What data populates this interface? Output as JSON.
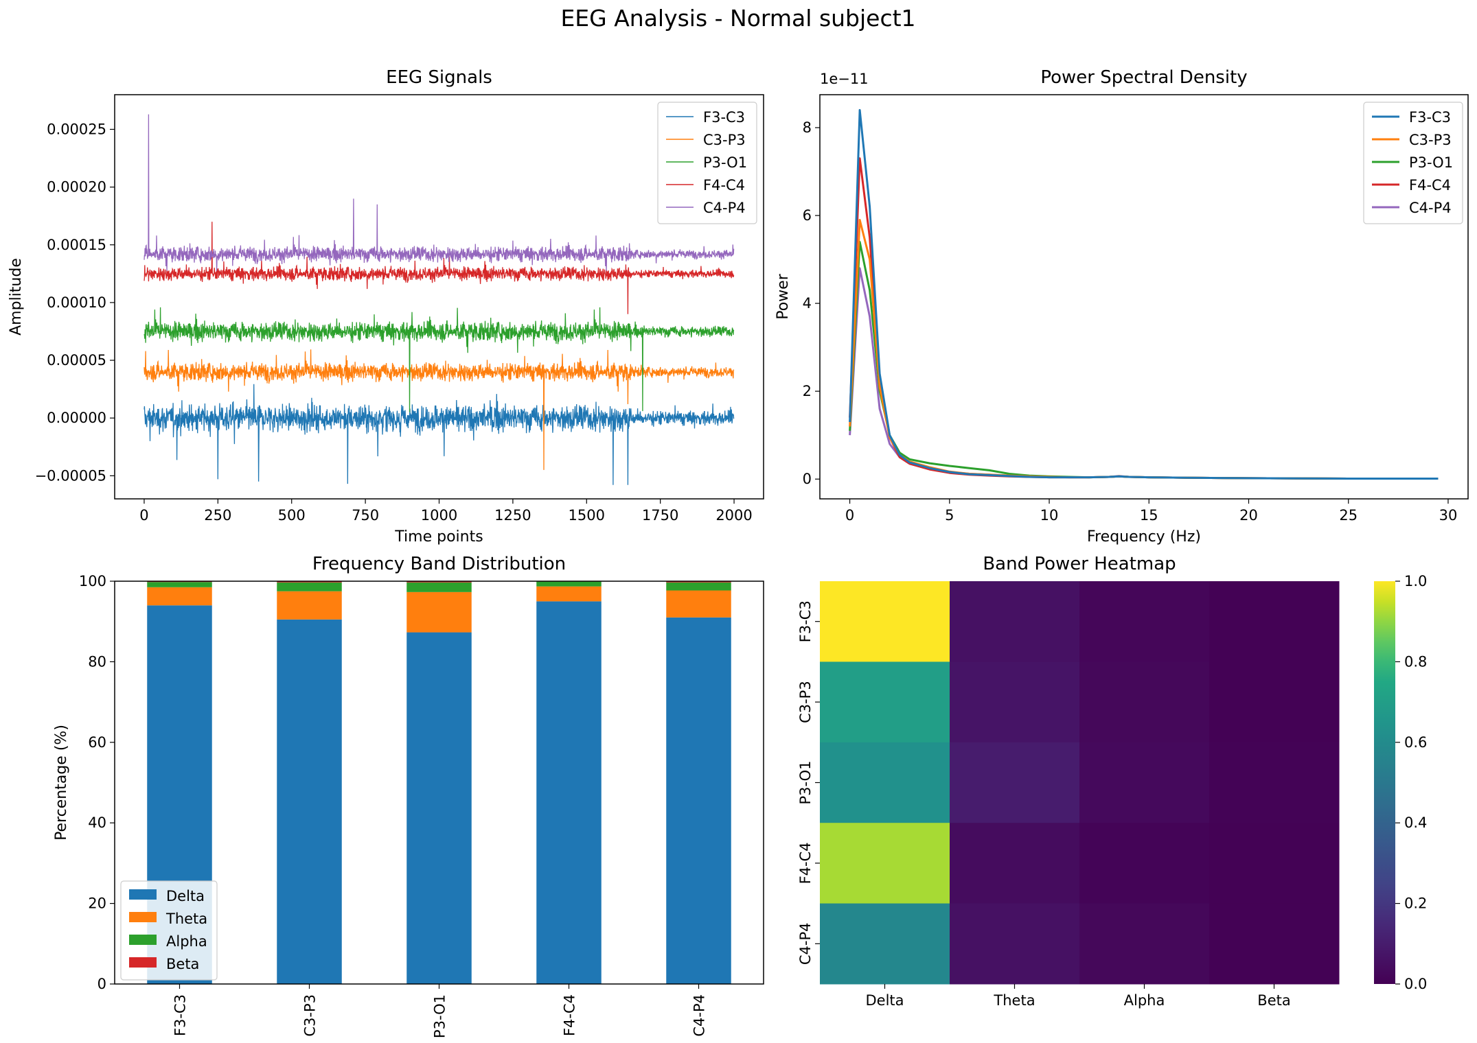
{
  "figure": {
    "title": "EEG Analysis - Normal subject1"
  },
  "chart_data": [
    {
      "type": "line",
      "title": "EEG Signals",
      "xlabel": "Time points",
      "ylabel": "Amplitude",
      "xlim": [
        -100,
        2100
      ],
      "ylim": [
        -7e-05,
        0.00028
      ],
      "xticks": [
        0,
        250,
        500,
        750,
        1000,
        1250,
        1500,
        1750,
        2000
      ],
      "xtick_labels": [
        "0",
        "250",
        "500",
        "750",
        "1000",
        "1250",
        "1500",
        "1750",
        "2000"
      ],
      "yticks": [
        -5e-05,
        0,
        5e-05,
        0.0001,
        0.00015,
        0.0002,
        0.00025
      ],
      "ytick_labels": [
        "−0.00005",
        "0.00000",
        "0.00005",
        "0.00010",
        "0.00015",
        "0.00020",
        "0.00025"
      ],
      "legend_position": "top-right",
      "series": [
        {
          "name": "F3-C3",
          "color": "#1f77b4",
          "baseline": 0.0,
          "noise": 9.5e-06,
          "spikes": [
            [
              20,
              -2e-05
            ],
            [
              250,
              -5.3e-05
            ],
            [
              388,
              -5.5e-05
            ],
            [
              690,
              -5.7e-05
            ],
            [
              1590,
              -5.8e-05
            ],
            [
              1640,
              -5.8e-05
            ]
          ]
        },
        {
          "name": "C3-P3",
          "color": "#ff7f0e",
          "baseline": 4e-05,
          "noise": 6.5e-06,
          "spikes": [
            [
              5,
              5.8e-05
            ],
            [
              1355,
              -4.5e-05
            ],
            [
              1640,
              1.2e-05
            ]
          ]
        },
        {
          "name": "P3-O1",
          "color": "#2ca02c",
          "baseline": 7.5e-05,
          "noise": 7e-06,
          "spikes": [
            [
              900,
              5e-06
            ],
            [
              1650,
              5.8e-05
            ],
            [
              1690,
              6e-06
            ]
          ]
        },
        {
          "name": "F4-C4",
          "color": "#d62728",
          "baseline": 0.000125,
          "noise": 5e-06,
          "spikes": [
            [
              230,
              0.00017
            ],
            [
              1640,
              9e-05
            ]
          ]
        },
        {
          "name": "C4-P4",
          "color": "#9467bd",
          "baseline": 0.000142,
          "noise": 5.5e-06,
          "spikes": [
            [
              15,
              0.000263
            ],
            [
              710,
              0.00019
            ],
            [
              790,
              0.000185
            ]
          ]
        }
      ],
      "n_points": 2000
    },
    {
      "type": "line",
      "title": "Power Spectral Density",
      "xlabel": "Frequency (Hz)",
      "ylabel": "Power",
      "offset_text": "1e−11",
      "xlim": [
        -1.5,
        31
      ],
      "ylim": [
        -0.45,
        8.75
      ],
      "xticks": [
        0,
        5,
        10,
        15,
        20,
        25,
        30
      ],
      "xtick_labels": [
        "0",
        "5",
        "10",
        "15",
        "20",
        "25",
        "30"
      ],
      "yticks": [
        0,
        2,
        4,
        6,
        8
      ],
      "ytick_labels": [
        "0",
        "2",
        "4",
        "6",
        "8"
      ],
      "legend_position": "top-right",
      "x": [
        0,
        0.5,
        1,
        1.5,
        2,
        2.5,
        3,
        4,
        5,
        6,
        7,
        8,
        9,
        10,
        11,
        12,
        13,
        13.5,
        14,
        15,
        17,
        20,
        25,
        29.5
      ],
      "series": [
        {
          "name": "F3-C3",
          "color": "#1f77b4",
          "values": [
            1.3,
            8.4,
            6.2,
            2.4,
            1.0,
            0.55,
            0.38,
            0.25,
            0.16,
            0.11,
            0.09,
            0.07,
            0.05,
            0.04,
            0.04,
            0.04,
            0.05,
            0.06,
            0.05,
            0.04,
            0.03,
            0.02,
            0.01,
            0.01
          ]
        },
        {
          "name": "C3-P3",
          "color": "#ff7f0e",
          "values": [
            1.2,
            5.9,
            5.0,
            2.1,
            0.95,
            0.55,
            0.4,
            0.27,
            0.17,
            0.12,
            0.1,
            0.08,
            0.06,
            0.05,
            0.04,
            0.04,
            0.05,
            0.06,
            0.05,
            0.04,
            0.03,
            0.02,
            0.01,
            0.01
          ]
        },
        {
          "name": "P3-O1",
          "color": "#2ca02c",
          "values": [
            1.1,
            5.4,
            4.3,
            2.0,
            1.0,
            0.6,
            0.45,
            0.36,
            0.3,
            0.25,
            0.2,
            0.12,
            0.08,
            0.06,
            0.05,
            0.04,
            0.05,
            0.06,
            0.05,
            0.04,
            0.03,
            0.02,
            0.01,
            0.01
          ]
        },
        {
          "name": "F4-C4",
          "color": "#d62728",
          "values": [
            1.4,
            7.3,
            5.5,
            2.2,
            0.95,
            0.5,
            0.35,
            0.22,
            0.14,
            0.1,
            0.08,
            0.06,
            0.05,
            0.04,
            0.04,
            0.04,
            0.05,
            0.06,
            0.05,
            0.04,
            0.03,
            0.02,
            0.01,
            0.01
          ]
        },
        {
          "name": "C4-P4",
          "color": "#9467bd",
          "values": [
            1.0,
            4.8,
            3.7,
            1.6,
            0.8,
            0.5,
            0.35,
            0.24,
            0.16,
            0.12,
            0.1,
            0.08,
            0.06,
            0.05,
            0.04,
            0.04,
            0.05,
            0.07,
            0.05,
            0.04,
            0.03,
            0.02,
            0.01,
            0.01
          ]
        }
      ]
    },
    {
      "type": "bar",
      "stacked": true,
      "title": "Frequency Band Distribution",
      "xlabel": "",
      "ylabel": "Percentage (%)",
      "ylim": [
        0,
        100
      ],
      "yticks": [
        0,
        20,
        40,
        60,
        80,
        100
      ],
      "ytick_labels": [
        "0",
        "20",
        "40",
        "60",
        "80",
        "100"
      ],
      "categories": [
        "F3-C3",
        "C3-P3",
        "P3-O1",
        "F4-C4",
        "C4-P4"
      ],
      "legend_position": "bottom-left",
      "series": [
        {
          "name": "Delta",
          "color": "#1f77b4",
          "values": [
            94.0,
            90.5,
            87.3,
            95.0,
            91.0
          ]
        },
        {
          "name": "Theta",
          "color": "#ff7f0e",
          "values": [
            4.5,
            7.0,
            10.0,
            3.7,
            6.7
          ]
        },
        {
          "name": "Alpha",
          "color": "#2ca02c",
          "values": [
            1.3,
            2.2,
            2.4,
            1.2,
            2.0
          ]
        },
        {
          "name": "Beta",
          "color": "#d62728",
          "values": [
            0.2,
            0.3,
            0.3,
            0.1,
            0.3
          ]
        }
      ]
    },
    {
      "type": "heatmap",
      "title": "Band Power Heatmap",
      "rows": [
        "F3-C3",
        "C3-P3",
        "P3-O1",
        "F4-C4",
        "C4-P4"
      ],
      "cols": [
        "Delta",
        "Theta",
        "Alpha",
        "Beta"
      ],
      "values": [
        [
          1.0,
          0.06,
          0.02,
          0.004
        ],
        [
          0.7,
          0.07,
          0.025,
          0.005
        ],
        [
          0.63,
          0.1,
          0.03,
          0.006
        ],
        [
          0.92,
          0.04,
          0.012,
          0.002
        ],
        [
          0.58,
          0.06,
          0.025,
          0.005
        ]
      ],
      "colorbar": {
        "colormap": "viridis",
        "range": [
          0,
          1
        ],
        "ticks": [
          0,
          0.2,
          0.4,
          0.6,
          0.8,
          1.0
        ],
        "tick_labels": [
          "0.0",
          "0.2",
          "0.4",
          "0.6",
          "0.8",
          "1.0"
        ]
      }
    }
  ]
}
